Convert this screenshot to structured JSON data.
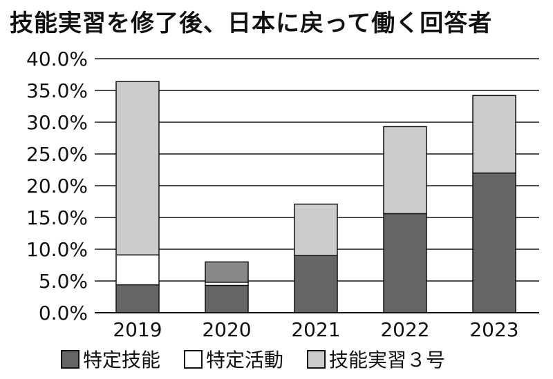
{
  "chart_data": {
    "type": "bar",
    "stacked": true,
    "title": "技能実習を修了後、日本に戻って働く回答者",
    "categories": [
      "2019",
      "2020",
      "2021",
      "2022",
      "2023"
    ],
    "series": [
      {
        "name": "特定技能",
        "color": "#666666",
        "values": [
          4.4,
          4.3,
          9.0,
          15.6,
          22.0
        ]
      },
      {
        "name": "特定活動",
        "color": "#ffffff",
        "values": [
          4.7,
          0.5,
          0.0,
          0.0,
          0.0
        ]
      },
      {
        "name": "技能実習３号",
        "color": "#cccccc",
        "values": [
          27.3,
          0.0,
          8.1,
          13.7,
          12.2
        ]
      }
    ],
    "extra_segments": [
      {
        "category": "2020",
        "color": "#888888",
        "values": [
          3.2
        ]
      }
    ],
    "ylim": [
      0,
      40
    ],
    "yticks": [
      "0.0%",
      "5.0%",
      "10.0%",
      "15.0%",
      "20.0%",
      "25.0%",
      "30.0%",
      "35.0%",
      "40.0%"
    ],
    "ytick_values": [
      0,
      5,
      10,
      15,
      20,
      25,
      30,
      35,
      40
    ],
    "grid": true,
    "legend_position": "bottom"
  }
}
